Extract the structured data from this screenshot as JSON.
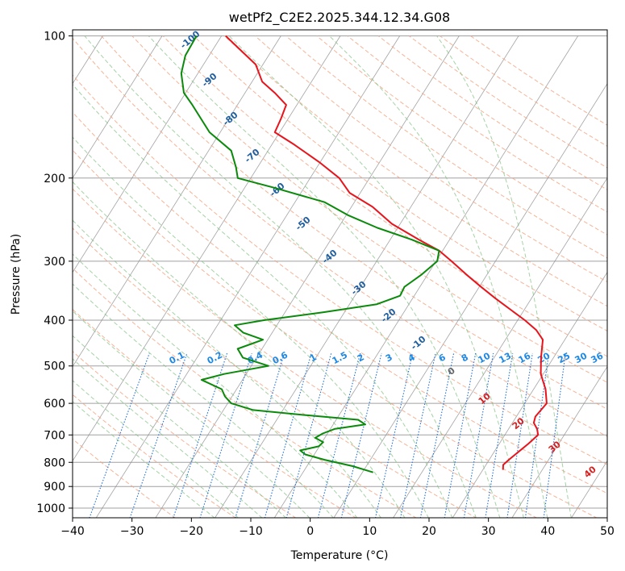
{
  "chart_data": {
    "type": "line",
    "chart_kind": "skew-T log-P thermodynamic diagram",
    "title": "wetPf2_C2E2.2025.344.12.34.G08",
    "xlabel": "Temperature (°C)",
    "ylabel": "Pressure (hPa)",
    "xlim": [
      -40,
      50
    ],
    "ylim": [
      1050,
      100
    ],
    "y_scale": "log",
    "x_ticks": [
      -40,
      -30,
      -20,
      -10,
      0,
      10,
      20,
      30,
      40,
      50
    ],
    "y_ticks": [
      1000,
      900,
      800,
      700,
      600,
      500,
      400,
      300,
      200,
      100
    ],
    "grid": true,
    "series": [
      {
        "color": "#e8141c",
        "style": "solid",
        "points": [
          {
            "p": 830,
            "t": 23.4
          },
          {
            "p": 810,
            "t": 22.9
          },
          {
            "p": 790,
            "t": 23.3
          },
          {
            "p": 760,
            "t": 24.1
          },
          {
            "p": 730,
            "t": 24.9
          },
          {
            "p": 700,
            "t": 25.6
          },
          {
            "p": 680,
            "t": 24.8
          },
          {
            "p": 660,
            "t": 23.6
          },
          {
            "p": 640,
            "t": 23.2
          },
          {
            "p": 600,
            "t": 23.7
          },
          {
            "p": 560,
            "t": 22.0
          },
          {
            "p": 520,
            "t": 19.6
          },
          {
            "p": 480,
            "t": 17.9
          },
          {
            "p": 440,
            "t": 16.3
          },
          {
            "p": 420,
            "t": 14.2
          },
          {
            "p": 400,
            "t": 11.2
          },
          {
            "p": 380,
            "t": 7.7
          },
          {
            "p": 360,
            "t": 4.0
          },
          {
            "p": 340,
            "t": 0.3
          },
          {
            "p": 320,
            "t": -3.5
          },
          {
            "p": 300,
            "t": -7.4
          },
          {
            "p": 285,
            "t": -10.6
          },
          {
            "p": 270,
            "t": -15.2
          },
          {
            "p": 250,
            "t": -21.4
          },
          {
            "p": 230,
            "t": -26.5
          },
          {
            "p": 215,
            "t": -31.8
          },
          {
            "p": 200,
            "t": -35.1
          },
          {
            "p": 185,
            "t": -40.2
          },
          {
            "p": 170,
            "t": -46.2
          },
          {
            "p": 160,
            "t": -50.8
          },
          {
            "p": 150,
            "t": -51.2
          },
          {
            "p": 140,
            "t": -51.8
          },
          {
            "p": 132,
            "t": -55.0
          },
          {
            "p": 125,
            "t": -58.3
          },
          {
            "p": 115,
            "t": -61.2
          },
          {
            "p": 100,
            "t": -69.3
          }
        ]
      },
      {
        "color": "#0a8a0a",
        "style": "solid",
        "points": [
          {
            "p": 840,
            "t": 1.8
          },
          {
            "p": 815,
            "t": -2.3
          },
          {
            "p": 790,
            "t": -7.7
          },
          {
            "p": 770,
            "t": -11.5
          },
          {
            "p": 755,
            "t": -12.8
          },
          {
            "p": 740,
            "t": -10.1
          },
          {
            "p": 725,
            "t": -9.8
          },
          {
            "p": 710,
            "t": -11.6
          },
          {
            "p": 695,
            "t": -10.8
          },
          {
            "p": 680,
            "t": -9.3
          },
          {
            "p": 665,
            "t": -4.6
          },
          {
            "p": 650,
            "t": -6.3
          },
          {
            "p": 635,
            "t": -16.0
          },
          {
            "p": 620,
            "t": -25.0
          },
          {
            "p": 600,
            "t": -29.4
          },
          {
            "p": 580,
            "t": -31.2
          },
          {
            "p": 560,
            "t": -32.5
          },
          {
            "p": 535,
            "t": -36.9
          },
          {
            "p": 520,
            "t": -33.7
          },
          {
            "p": 500,
            "t": -27.1
          },
          {
            "p": 480,
            "t": -32.3
          },
          {
            "p": 460,
            "t": -34.1
          },
          {
            "p": 440,
            "t": -30.8
          },
          {
            "p": 425,
            "t": -34.9
          },
          {
            "p": 410,
            "t": -37.1
          },
          {
            "p": 400,
            "t": -32.7
          },
          {
            "p": 385,
            "t": -23.6
          },
          {
            "p": 370,
            "t": -15.4
          },
          {
            "p": 355,
            "t": -12.4
          },
          {
            "p": 340,
            "t": -12.6
          },
          {
            "p": 320,
            "t": -11.0
          },
          {
            "p": 300,
            "t": -9.8
          },
          {
            "p": 285,
            "t": -10.6
          },
          {
            "p": 270,
            "t": -16.4
          },
          {
            "p": 255,
            "t": -23.4
          },
          {
            "p": 240,
            "t": -29.6
          },
          {
            "p": 225,
            "t": -35.0
          },
          {
            "p": 210,
            "t": -44.8
          },
          {
            "p": 200,
            "t": -52.2
          },
          {
            "p": 190,
            "t": -53.6
          },
          {
            "p": 175,
            "t": -56.2
          },
          {
            "p": 160,
            "t": -61.8
          },
          {
            "p": 150,
            "t": -64.6
          },
          {
            "p": 140,
            "t": -67.6
          },
          {
            "p": 132,
            "t": -70.3
          },
          {
            "p": 120,
            "t": -72.8
          },
          {
            "p": 110,
            "t": -74.0
          },
          {
            "p": 100,
            "t": -74.2
          }
        ]
      }
    ],
    "dry_adiabat_labels": [],
    "moist_adiabat_labels": [
      "-100",
      "-90",
      "-80",
      "-70",
      "-60",
      "-50",
      "-40",
      "-30",
      "-20",
      "-10",
      "0",
      "10",
      "20",
      "30",
      "40"
    ],
    "mixing_ratio_labels": [
      "0.1",
      "0.2",
      "0.4",
      "0.6",
      "1",
      "1.5",
      "2",
      "3",
      "4",
      "6",
      "8",
      "10",
      "13",
      "16",
      "20",
      "25",
      "30",
      "36"
    ],
    "colors": {
      "dry_adiabat": "#f4a07e",
      "moist_adiabat": "#7fbf7f",
      "mixing_ratio": "#1e6fd9",
      "isotherm": "#8c8c8c",
      "isobar": "#a0a0a0",
      "moist_label_cold": "#1f5fa0",
      "moist_label_warm": "#d62020",
      "mixing_label": "#1e88e5"
    }
  }
}
